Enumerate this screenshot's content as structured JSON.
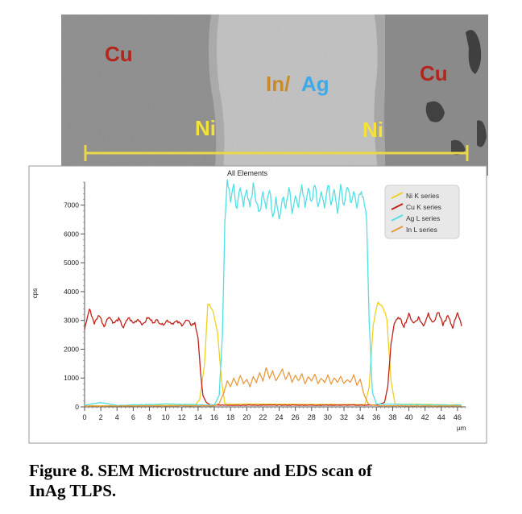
{
  "sem": {
    "labels": {
      "cu_left": "Cu",
      "in": "In/",
      "ag": "Ag",
      "cu_right": "Cu",
      "ni_left": "Ni",
      "ni_right": "Ni"
    },
    "colors": {
      "cu": "#b3261e",
      "in": "#c98a2a",
      "ag": "#3fa8e6",
      "ni": "#f2e23a",
      "scan_line": "#e8d84a"
    }
  },
  "chart_data": {
    "type": "line",
    "title": "All Elements",
    "xlabel": "µm",
    "ylabel": "cps",
    "xlim": [
      0,
      47
    ],
    "ylim": [
      0,
      7800
    ],
    "x_ticks": [
      0,
      2,
      4,
      6,
      8,
      10,
      12,
      14,
      16,
      18,
      20,
      22,
      24,
      26,
      28,
      30,
      32,
      34,
      36,
      38,
      40,
      42,
      44,
      46
    ],
    "y_ticks": [
      0,
      1000,
      2000,
      3000,
      4000,
      5000,
      6000,
      7000
    ],
    "legend_position": "top-right",
    "series": [
      {
        "name": "Ni K series",
        "color": "#f0d020",
        "points": [
          [
            0,
            30
          ],
          [
            13.6,
            60
          ],
          [
            14.2,
            250
          ],
          [
            14.8,
            1500
          ],
          [
            15.2,
            3600
          ],
          [
            15.8,
            3400
          ],
          [
            16.4,
            2600
          ],
          [
            16.9,
            900
          ],
          [
            17.3,
            100
          ],
          [
            34.6,
            80
          ],
          [
            35.1,
            700
          ],
          [
            35.6,
            2800
          ],
          [
            36.1,
            3600
          ],
          [
            36.7,
            3550
          ],
          [
            37.3,
            3000
          ],
          [
            37.8,
            900
          ],
          [
            38.3,
            100
          ],
          [
            46.5,
            70
          ]
        ]
      },
      {
        "name": "Cu K series",
        "color": "#c0221c",
        "points": [
          [
            0,
            2700
          ],
          [
            0.6,
            3400
          ],
          [
            1.2,
            2900
          ],
          [
            1.8,
            3200
          ],
          [
            2.4,
            2800
          ],
          [
            3,
            3150
          ],
          [
            3.6,
            2900
          ],
          [
            4.2,
            3050
          ],
          [
            4.8,
            2750
          ],
          [
            5.4,
            3100
          ],
          [
            6,
            2900
          ],
          [
            6.6,
            3050
          ],
          [
            7.2,
            2850
          ],
          [
            7.8,
            3100
          ],
          [
            8.4,
            2950
          ],
          [
            9,
            3000
          ],
          [
            9.6,
            2850
          ],
          [
            10.2,
            3000
          ],
          [
            10.8,
            2900
          ],
          [
            11.4,
            2950
          ],
          [
            12,
            2850
          ],
          [
            12.6,
            3000
          ],
          [
            13.2,
            2850
          ],
          [
            13.6,
            2900
          ],
          [
            14,
            2400
          ],
          [
            14.3,
            1200
          ],
          [
            14.6,
            400
          ],
          [
            15,
            150
          ],
          [
            15.6,
            60
          ],
          [
            36,
            60
          ],
          [
            37,
            150
          ],
          [
            37.4,
            700
          ],
          [
            37.8,
            2200
          ],
          [
            38.2,
            2900
          ],
          [
            38.8,
            3100
          ],
          [
            39.4,
            2800
          ],
          [
            40,
            3200
          ],
          [
            40.6,
            2900
          ],
          [
            41.2,
            3100
          ],
          [
            41.8,
            2800
          ],
          [
            42.4,
            3250
          ],
          [
            43,
            2900
          ],
          [
            43.6,
            3300
          ],
          [
            44.2,
            2850
          ],
          [
            44.8,
            3150
          ],
          [
            45.4,
            2750
          ],
          [
            46,
            3300
          ],
          [
            46.5,
            2800
          ]
        ]
      },
      {
        "name": "Ag L series",
        "color": "#4fe0e6",
        "points": [
          [
            0,
            60
          ],
          [
            2,
            150
          ],
          [
            4,
            50
          ],
          [
            10,
            100
          ],
          [
            16,
            60
          ],
          [
            16.6,
            400
          ],
          [
            17,
            2500
          ],
          [
            17.3,
            6400
          ],
          [
            17.6,
            7800
          ],
          [
            18,
            7200
          ],
          [
            18.4,
            7600
          ],
          [
            18.8,
            6800
          ],
          [
            19.2,
            7700
          ],
          [
            19.6,
            7000
          ],
          [
            20,
            7500
          ],
          [
            20.4,
            6900
          ],
          [
            20.8,
            7700
          ],
          [
            21.2,
            7100
          ],
          [
            21.6,
            6700
          ],
          [
            22,
            7400
          ],
          [
            22.4,
            6900
          ],
          [
            22.8,
            7600
          ],
          [
            23.2,
            6600
          ],
          [
            23.6,
            7200
          ],
          [
            24,
            6500
          ],
          [
            24.4,
            7300
          ],
          [
            24.8,
            7000
          ],
          [
            25.2,
            7600
          ],
          [
            25.6,
            6800
          ],
          [
            26,
            7400
          ],
          [
            26.4,
            7000
          ],
          [
            26.8,
            7700
          ],
          [
            27.2,
            6900
          ],
          [
            27.6,
            7500
          ],
          [
            28,
            7100
          ],
          [
            28.4,
            7700
          ],
          [
            28.8,
            6900
          ],
          [
            29.2,
            7400
          ],
          [
            29.6,
            7000
          ],
          [
            30,
            7800
          ],
          [
            30.4,
            7100
          ],
          [
            30.8,
            7500
          ],
          [
            31.2,
            6800
          ],
          [
            31.6,
            7600
          ],
          [
            32,
            7000
          ],
          [
            32.4,
            7700
          ],
          [
            32.8,
            7100
          ],
          [
            33.2,
            7400
          ],
          [
            33.6,
            6900
          ],
          [
            34,
            7500
          ],
          [
            34.4,
            7200
          ],
          [
            34.8,
            6500
          ],
          [
            35.1,
            3000
          ],
          [
            35.5,
            500
          ],
          [
            36,
            100
          ],
          [
            40,
            80
          ],
          [
            46.5,
            60
          ]
        ]
      },
      {
        "name": "In L series",
        "color": "#e89a3c",
        "points": [
          [
            0,
            30
          ],
          [
            16,
            40
          ],
          [
            16.6,
            120
          ],
          [
            17.2,
            500
          ],
          [
            17.6,
            900
          ],
          [
            18,
            700
          ],
          [
            18.4,
            1000
          ],
          [
            18.8,
            750
          ],
          [
            19.2,
            1100
          ],
          [
            19.6,
            800
          ],
          [
            20,
            950
          ],
          [
            20.4,
            700
          ],
          [
            20.8,
            1050
          ],
          [
            21.2,
            850
          ],
          [
            21.6,
            1200
          ],
          [
            22,
            900
          ],
          [
            22.4,
            1350
          ],
          [
            22.8,
            1000
          ],
          [
            23.2,
            1250
          ],
          [
            23.6,
            900
          ],
          [
            24,
            1100
          ],
          [
            24.4,
            1300
          ],
          [
            24.8,
            950
          ],
          [
            25.2,
            1200
          ],
          [
            25.6,
            850
          ],
          [
            26,
            1100
          ],
          [
            26.4,
            900
          ],
          [
            26.8,
            1150
          ],
          [
            27.2,
            800
          ],
          [
            27.6,
            1050
          ],
          [
            28,
            900
          ],
          [
            28.4,
            1150
          ],
          [
            28.8,
            800
          ],
          [
            29.2,
            1000
          ],
          [
            29.6,
            850
          ],
          [
            30,
            1100
          ],
          [
            30.4,
            800
          ],
          [
            30.8,
            1000
          ],
          [
            31.2,
            850
          ],
          [
            31.6,
            1050
          ],
          [
            32,
            800
          ],
          [
            32.4,
            950
          ],
          [
            32.8,
            850
          ],
          [
            33.2,
            1100
          ],
          [
            33.6,
            750
          ],
          [
            34,
            950
          ],
          [
            34.5,
            400
          ],
          [
            35,
            100
          ],
          [
            36,
            40
          ],
          [
            46.5,
            30
          ]
        ]
      }
    ]
  },
  "caption": {
    "line1": "Figure 8. SEM Microstructure and EDS scan of",
    "line2": "InAg TLPS."
  }
}
